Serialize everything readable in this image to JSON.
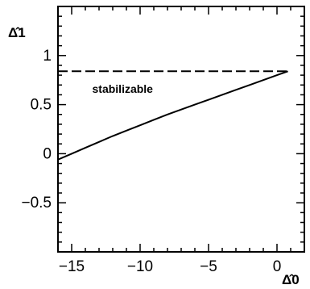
{
  "chart_data": {
    "type": "line",
    "title": "",
    "xlabel": "Δ̂0",
    "ylabel": "Δ̂1",
    "xlim": [
      -16,
      2
    ],
    "ylim": [
      -1,
      1.5
    ],
    "x_ticks": [
      -15,
      -10,
      -5,
      0
    ],
    "x_tick_labels": [
      "−15",
      "−10",
      "−5",
      "0"
    ],
    "y_ticks": [
      -0.5,
      0,
      0.5,
      1
    ],
    "y_tick_labels": [
      "−0.5",
      "0",
      "0.5",
      "1"
    ],
    "grid": false,
    "annotations": [
      {
        "text": "stabilizable",
        "x": -13.5,
        "y": 0.62
      }
    ],
    "series": [
      {
        "style": "solid",
        "x": [
          -16,
          -15,
          -14,
          -13,
          -12,
          -11,
          -10,
          -9,
          -8,
          -7,
          -6,
          -5,
          -4,
          -3,
          -2,
          -1,
          0,
          0.8
        ],
        "y": [
          -0.06,
          0.0,
          0.06,
          0.12,
          0.18,
          0.235,
          0.29,
          0.345,
          0.4,
          0.45,
          0.5,
          0.55,
          0.6,
          0.65,
          0.7,
          0.75,
          0.8,
          0.84
        ]
      },
      {
        "style": "dashed",
        "x": [
          -16,
          0.8
        ],
        "y": [
          0.84,
          0.84
        ]
      }
    ]
  }
}
